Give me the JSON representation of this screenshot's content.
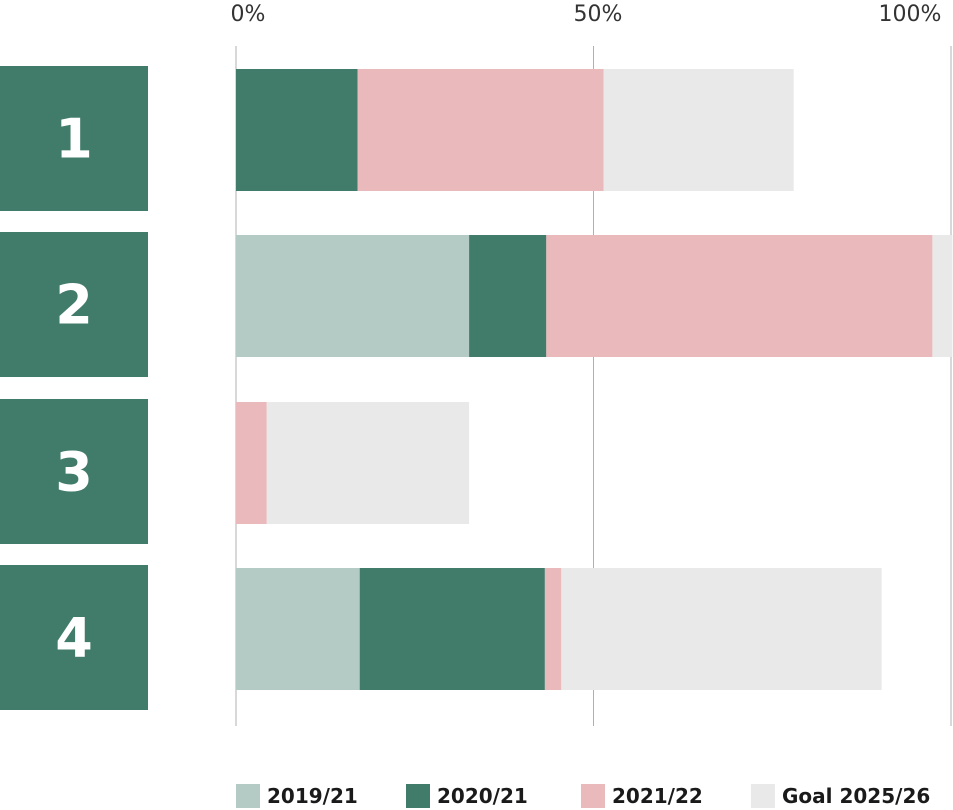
{
  "chart_data": {
    "type": "bar",
    "orientation": "horizontal",
    "stacked": true,
    "categories": [
      "1",
      "2",
      "3",
      "4"
    ],
    "x_ticks": [
      "0%",
      "50%",
      "100%"
    ],
    "xlim": [
      0,
      100
    ],
    "grid": true,
    "legend_position": "bottom",
    "series": [
      {
        "name": "2019/21",
        "color": "#b4cbc5",
        "values": [
          0,
          32.6,
          0,
          17.3
        ]
      },
      {
        "name": "2020/21",
        "color": "#417b6a",
        "values": [
          17.0,
          10.8,
          0,
          25.9
        ]
      },
      {
        "name": "2021/22",
        "color": "#e9b9bb",
        "values": [
          34.4,
          54.0,
          4.3,
          2.3
        ]
      },
      {
        "name": "Goal 2025/26",
        "color": "#e8e9e8",
        "values": [
          26.6,
          2.8,
          28.3,
          44.8
        ]
      }
    ],
    "category_box_color": "#417b6a",
    "gridline_color": "#b0b0b0"
  }
}
